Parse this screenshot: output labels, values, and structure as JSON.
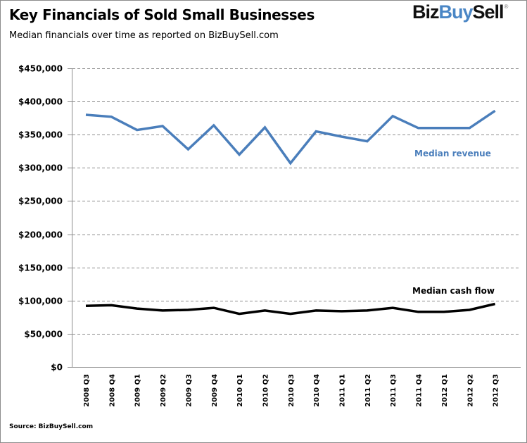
{
  "header": {
    "title": "Key Financials of Sold Small Businesses",
    "subtitle": "Median financials over time as reported  on  BizBuySell.com",
    "logo": {
      "part1": "Biz",
      "part2": "Buy",
      "part3": "Sell",
      "mark": "®"
    }
  },
  "footer": {
    "source": "Source: BizBuySell.com"
  },
  "colors": {
    "revenue": "#4a7ebb",
    "cash_flow": "#000000",
    "logo_accent": "#4a86c5",
    "grid": "#8c8c8c"
  },
  "chart_data": {
    "type": "line",
    "title": "Key Financials of Sold Small Businesses",
    "subtitle": "Median financials over time as reported on BizBuySell.com",
    "xlabel": "",
    "ylabel": "",
    "ylim": [
      0,
      450000
    ],
    "yticks": [
      0,
      50000,
      100000,
      150000,
      200000,
      250000,
      300000,
      350000,
      400000,
      450000
    ],
    "ytick_labels": [
      "$0",
      "$50,000",
      "$100,000",
      "$150,000",
      "$200,000",
      "$250,000",
      "$300,000",
      "$350,000",
      "$400,000",
      "$450,000"
    ],
    "grid": true,
    "legend": "inline labels (revenue label center-right below line, cash flow label right above line)",
    "categories": [
      "2008 Q3",
      "2008 Q4",
      "2009 Q1",
      "2009 Q2",
      "2009 Q3",
      "2009 Q4",
      "2010 Q1",
      "2010 Q2",
      "2010 Q3",
      "2010 Q4",
      "2011 Q1",
      "2011 Q2",
      "2011 Q3",
      "2011 Q4",
      "2012 Q1",
      "2012 Q2",
      "2012 Q3"
    ],
    "series": [
      {
        "name": "Median revenue",
        "color": "#4a7ebb",
        "values": [
          380000,
          377000,
          357000,
          363000,
          328000,
          364000,
          320000,
          361000,
          307000,
          355000,
          347000,
          340000,
          378000,
          360000,
          360000,
          360000,
          386000
        ]
      },
      {
        "name": "Median cash flow",
        "color": "#000000",
        "values": [
          92000,
          93000,
          88000,
          85000,
          86000,
          89000,
          80000,
          85000,
          80000,
          85000,
          84000,
          85000,
          89000,
          83000,
          83000,
          86000,
          95000
        ]
      }
    ]
  }
}
